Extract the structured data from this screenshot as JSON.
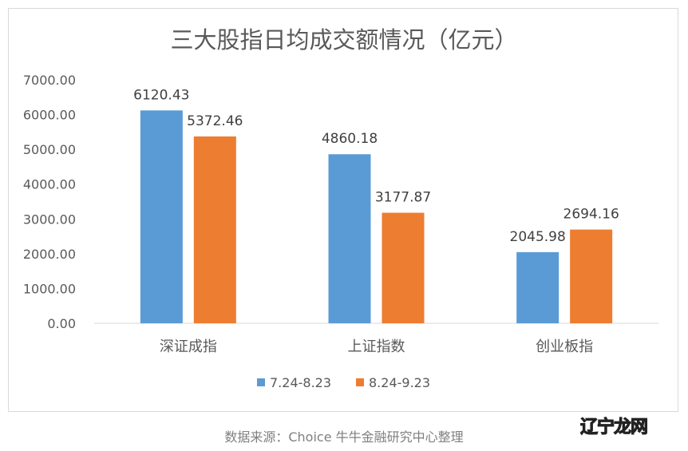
{
  "chart_data": {
    "type": "bar",
    "title": "三大股指日均成交额情况（亿元）",
    "categories": [
      "深证成指",
      "上证指数",
      "创业板指"
    ],
    "series": [
      {
        "name": "7.24-8.23",
        "color": "#5b9bd5",
        "values": [
          6120.43,
          4860.18,
          2045.98
        ],
        "labels": [
          "6120.43",
          "4860.18",
          "2045.98"
        ]
      },
      {
        "name": "8.24-9.23",
        "color": "#ed7d31",
        "values": [
          5372.46,
          3177.87,
          2694.16
        ],
        "labels": [
          "5372.46",
          "3177.87",
          "2694.16"
        ]
      }
    ],
    "ylim": [
      0,
      7000
    ],
    "yticks": [
      "0.00",
      "1000.00",
      "2000.00",
      "3000.00",
      "4000.00",
      "5000.00",
      "6000.00",
      "7000.00"
    ],
    "grid": false,
    "legend": "bottom"
  },
  "footer": "数据来源：Choice 牛牛金融研究中心整理",
  "watermark": "辽宁龙网"
}
